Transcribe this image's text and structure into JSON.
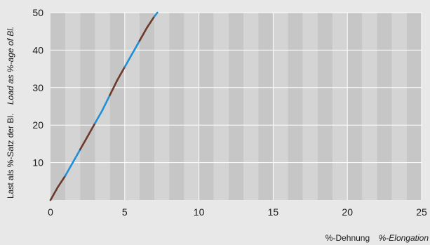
{
  "chart_data": {
    "type": "line",
    "xlim": [
      0,
      25
    ],
    "ylim": [
      0,
      50
    ],
    "x_ticks": [
      "0",
      "5",
      "10",
      "15",
      "20",
      "25"
    ],
    "y_ticks": [
      "10",
      "20",
      "30",
      "40",
      "50"
    ],
    "xlabel": "%-Dehnung",
    "xlabel_en": "%-Elongation",
    "ylabel": "Last als %-Satz der Bl.",
    "ylabel_en": "Load as %-age of Bl.",
    "grid": true,
    "series": [
      {
        "x": [
          0,
          0.5,
          1,
          1.5,
          2,
          2.5,
          3,
          3.5,
          4,
          4.5,
          5,
          5.5,
          6,
          6.5,
          7,
          7.2
        ],
        "y": [
          0,
          3.5,
          6.5,
          10,
          13.5,
          17,
          20.5,
          24,
          28,
          32,
          35.5,
          39,
          42.5,
          46,
          49,
          50
        ],
        "colors": [
          "#6b3a2a",
          "#1f8fd6"
        ]
      }
    ]
  }
}
